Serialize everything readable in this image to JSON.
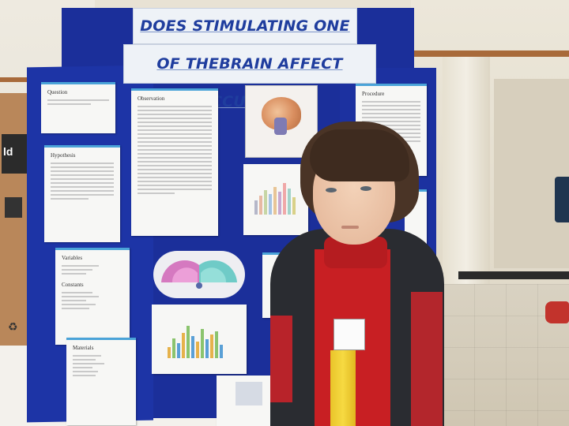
{
  "poster": {
    "title_line1": "DOES STIMULATING ONE SIDE",
    "title_line2": "OF THEBRAIN AFFECT ACCURACY?"
  },
  "sections": {
    "question": "Question",
    "hypothesis": "Hypothesis",
    "observation": "Observation",
    "procedure": "Procedure",
    "variables": "Variables",
    "constants": "Constants",
    "materials": "Materials"
  },
  "colors": {
    "board": "#1b2f9a",
    "title_text": "#1f3d9e",
    "ribbon": "#f0cf35",
    "shirt": "#c81f23"
  },
  "background": {
    "box_label": "ld"
  }
}
